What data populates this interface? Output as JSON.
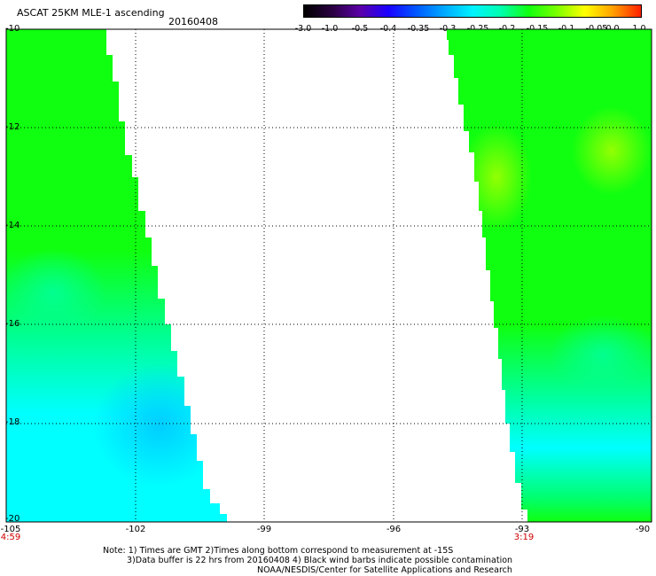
{
  "header": {
    "title": "ASCAT 25KM MLE-1 ascending",
    "date": "20160408"
  },
  "colorbar": {
    "ticks": [
      "-3.0",
      "-1.0",
      "-0.5",
      "-0.4",
      "-0.35",
      "-0.3",
      "-0.25",
      "-0.2",
      "-0.15",
      "-0.1",
      "-0.05",
      "0.0",
      "1.0"
    ],
    "colors": [
      "#000000",
      "#2a0040",
      "#5b00a8",
      "#1a00ff",
      "#0058ff",
      "#00aaff",
      "#00f2ff",
      "#00ffb0",
      "#10ff10",
      "#7aff00",
      "#ffff00",
      "#ffa000",
      "#ff2000"
    ]
  },
  "axes": {
    "lat_labels": [
      "-10",
      "-12",
      "-14",
      "-16",
      "-18",
      "-20"
    ],
    "lon_labels": [
      "-105",
      "-102",
      "-99",
      "-96",
      "-93",
      "-90"
    ]
  },
  "times": {
    "left": "4:59",
    "right": "3:19"
  },
  "notes": {
    "line1": "Note: 1) Times are GMT 2)Times along bottom correspond to measurement at -15S",
    "line2": "3)Data buffer is 22 hrs from 20160408 4) Black wind barbs indicate possible contamination",
    "line3": "NOAA/NESDIS/Center for Satellite Applications and Research"
  },
  "palette": {
    "cyan": "#00ffff",
    "green": "#10ff10",
    "yellow_green": "#9aff00",
    "light_blue": "#00d8ff",
    "teal_green": "#00ff90"
  }
}
